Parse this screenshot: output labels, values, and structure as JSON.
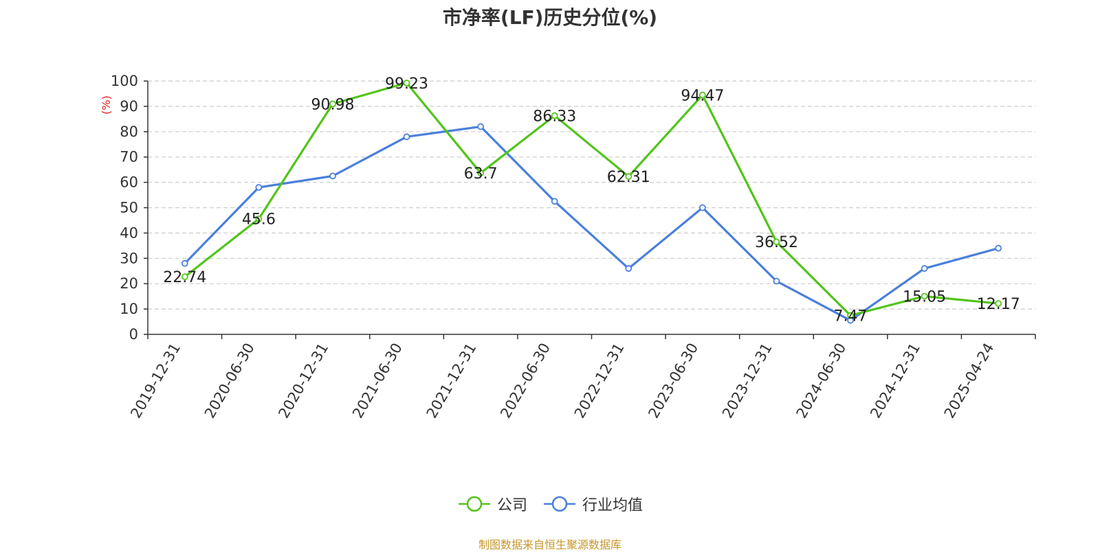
{
  "chart_data": {
    "type": "line",
    "title": "市净率(LF)历史分位(%)",
    "ylabel": "(%)",
    "xlabel": "",
    "categories": [
      "2019-12-31",
      "2020-06-30",
      "2020-12-31",
      "2021-06-30",
      "2021-12-31",
      "2022-06-30",
      "2022-12-31",
      "2023-06-30",
      "2023-12-31",
      "2024-06-30",
      "2024-12-31",
      "2025-04-24"
    ],
    "ylim": [
      0,
      100
    ],
    "yticks": [
      0,
      10,
      20,
      30,
      40,
      50,
      60,
      70,
      80,
      90,
      100
    ],
    "grid": true,
    "legend_position": "bottom",
    "series": [
      {
        "name": "公司",
        "color": "#52c41a",
        "values": [
          22.74,
          45.6,
          90.98,
          99.23,
          63.7,
          86.33,
          62.31,
          94.47,
          36.52,
          7.47,
          15.05,
          12.17
        ],
        "labels": [
          "22.74",
          "45.6",
          "90.98",
          "99.23",
          "63.7",
          "86.33",
          "62.31",
          "94.47",
          "36.52",
          "7.47",
          "15.05",
          "12.17"
        ]
      },
      {
        "name": "行业均值",
        "color": "#4a7fdc",
        "values": [
          28,
          58,
          62.5,
          78,
          82,
          52.5,
          26,
          50,
          21,
          5.5,
          26,
          34
        ]
      }
    ]
  },
  "footer": {
    "source": "制图数据来自恒生聚源数据库"
  }
}
